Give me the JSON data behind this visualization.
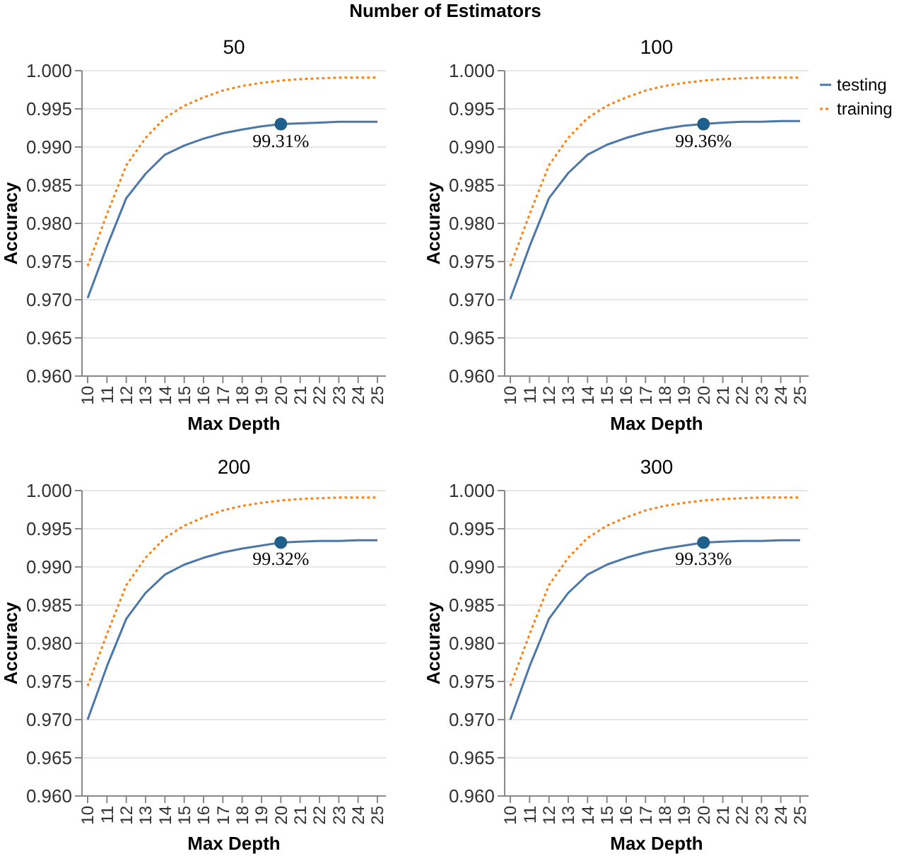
{
  "chart_data": [
    {
      "type": "line",
      "title": "50",
      "xlabel": "Max Depth",
      "ylabel": "Accuracy",
      "annotations": [
        "Number of Estimators",
        {
          "text": "99.31%",
          "x": "20",
          "y": 0.993
        }
      ],
      "categories": [
        "10",
        "11",
        "12",
        "13",
        "14",
        "15",
        "16",
        "17",
        "18",
        "19",
        "20",
        "21",
        "22",
        "23",
        "24",
        "25"
      ],
      "ylim": [
        0.96,
        1.0
      ],
      "yticks": [
        {
          "value": 0.96,
          "label": "0.960"
        },
        {
          "value": 0.965,
          "label": "0.965"
        },
        {
          "value": 0.97,
          "label": "0.970"
        },
        {
          "value": 0.975,
          "label": "0.975"
        },
        {
          "value": 0.98,
          "label": "0.980"
        },
        {
          "value": 0.985,
          "label": "0.985"
        },
        {
          "value": 0.99,
          "label": "0.990"
        },
        {
          "value": 0.995,
          "label": "0.995"
        },
        {
          "value": 1.0,
          "label": "1.000"
        }
      ],
      "grid": "y",
      "legend": false,
      "series": [
        {
          "color": "#4c78a8",
          "line_style": "solid",
          "values": [
            0.9702,
            0.977,
            0.9833,
            0.9865,
            0.989,
            0.9902,
            0.9911,
            0.9918,
            0.9923,
            0.9927,
            0.993,
            0.9931,
            0.9932,
            0.9933,
            0.9933,
            0.9933
          ]
        },
        {
          "color": "#f58518",
          "line_style": "dotted",
          "values": [
            0.9744,
            0.9812,
            0.9876,
            0.9912,
            0.9938,
            0.9954,
            0.9965,
            0.9974,
            0.998,
            0.9984,
            0.9987,
            0.9989,
            0.999,
            0.9991,
            0.9991,
            0.9991
          ]
        },
        {
          "type": "scatter",
          "color": "#1f5f8b",
          "x": [
            "20"
          ],
          "values": [
            0.993
          ]
        }
      ]
    },
    {
      "type": "line",
      "title": "100",
      "xlabel": "Max Depth",
      "ylabel": "Accuracy",
      "annotations": [
        {
          "text": "99.36%",
          "x": "20",
          "y": 0.993
        }
      ],
      "categories": [
        "10",
        "11",
        "12",
        "13",
        "14",
        "15",
        "16",
        "17",
        "18",
        "19",
        "20",
        "21",
        "22",
        "23",
        "24",
        "25"
      ],
      "ylim": [
        0.96,
        1.0
      ],
      "yticks": [
        {
          "value": 0.96,
          "label": "0.960"
        },
        {
          "value": 0.965,
          "label": "0.965"
        },
        {
          "value": 0.97,
          "label": "0.970"
        },
        {
          "value": 0.975,
          "label": "0.975"
        },
        {
          "value": 0.98,
          "label": "0.980"
        },
        {
          "value": 0.985,
          "label": "0.985"
        },
        {
          "value": 0.99,
          "label": "0.990"
        },
        {
          "value": 0.995,
          "label": "0.995"
        },
        {
          "value": 1.0,
          "label": "1.000"
        }
      ],
      "grid": "y",
      "legend": "right",
      "series": [
        {
          "name": "testing",
          "color": "#4c78a8",
          "line_style": "solid",
          "values": [
            0.9701,
            0.977,
            0.9833,
            0.9866,
            0.989,
            0.9903,
            0.9912,
            0.9919,
            0.9924,
            0.9928,
            0.993,
            0.9932,
            0.9933,
            0.9933,
            0.9934,
            0.9934
          ]
        },
        {
          "name": "training",
          "color": "#f58518",
          "line_style": "dotted",
          "values": [
            0.9744,
            0.9812,
            0.9876,
            0.9912,
            0.9938,
            0.9954,
            0.9965,
            0.9974,
            0.998,
            0.9984,
            0.9987,
            0.9989,
            0.999,
            0.9991,
            0.9991,
            0.9991
          ]
        },
        {
          "type": "scatter",
          "color": "#1f5f8b",
          "x": [
            "20"
          ],
          "values": [
            0.993
          ]
        }
      ]
    },
    {
      "type": "line",
      "title": "200",
      "xlabel": "Max Depth",
      "ylabel": "Accuracy",
      "annotations": [
        {
          "text": "99.32%",
          "x": "20",
          "y": 0.9932
        }
      ],
      "categories": [
        "10",
        "11",
        "12",
        "13",
        "14",
        "15",
        "16",
        "17",
        "18",
        "19",
        "20",
        "21",
        "22",
        "23",
        "24",
        "25"
      ],
      "ylim": [
        0.96,
        1.0
      ],
      "yticks": [
        {
          "value": 0.96,
          "label": "0.960"
        },
        {
          "value": 0.965,
          "label": "0.965"
        },
        {
          "value": 0.97,
          "label": "0.970"
        },
        {
          "value": 0.975,
          "label": "0.975"
        },
        {
          "value": 0.98,
          "label": "0.980"
        },
        {
          "value": 0.985,
          "label": "0.985"
        },
        {
          "value": 0.99,
          "label": "0.990"
        },
        {
          "value": 0.995,
          "label": "0.995"
        },
        {
          "value": 1.0,
          "label": "1.000"
        }
      ],
      "grid": "y",
      "legend": false,
      "series": [
        {
          "color": "#4c78a8",
          "line_style": "solid",
          "values": [
            0.97,
            0.977,
            0.9832,
            0.9866,
            0.989,
            0.9903,
            0.9912,
            0.9919,
            0.9924,
            0.9928,
            0.9932,
            0.9933,
            0.9934,
            0.9934,
            0.9935,
            0.9935
          ]
        },
        {
          "color": "#f58518",
          "line_style": "dotted",
          "values": [
            0.9744,
            0.9812,
            0.9876,
            0.9912,
            0.9938,
            0.9954,
            0.9965,
            0.9974,
            0.998,
            0.9984,
            0.9987,
            0.9989,
            0.999,
            0.9991,
            0.9991,
            0.9991
          ]
        },
        {
          "type": "scatter",
          "color": "#1f5f8b",
          "x": [
            "20"
          ],
          "values": [
            0.9932
          ]
        }
      ]
    },
    {
      "type": "line",
      "title": "300",
      "xlabel": "Max Depth",
      "ylabel": "Accuracy",
      "annotations": [
        {
          "text": "99.33%",
          "x": "20",
          "y": 0.9932
        }
      ],
      "categories": [
        "10",
        "11",
        "12",
        "13",
        "14",
        "15",
        "16",
        "17",
        "18",
        "19",
        "20",
        "21",
        "22",
        "23",
        "24",
        "25"
      ],
      "ylim": [
        0.96,
        1.0
      ],
      "yticks": [
        {
          "value": 0.96,
          "label": "0.960"
        },
        {
          "value": 0.965,
          "label": "0.965"
        },
        {
          "value": 0.97,
          "label": "0.970"
        },
        {
          "value": 0.975,
          "label": "0.975"
        },
        {
          "value": 0.98,
          "label": "0.980"
        },
        {
          "value": 0.985,
          "label": "0.985"
        },
        {
          "value": 0.99,
          "label": "0.990"
        },
        {
          "value": 0.995,
          "label": "0.995"
        },
        {
          "value": 1.0,
          "label": "1.000"
        }
      ],
      "grid": "y",
      "legend": false,
      "series": [
        {
          "color": "#4c78a8",
          "line_style": "solid",
          "values": [
            0.97,
            0.977,
            0.9832,
            0.9866,
            0.989,
            0.9903,
            0.9912,
            0.9919,
            0.9924,
            0.9928,
            0.9932,
            0.9933,
            0.9934,
            0.9934,
            0.9935,
            0.9935
          ]
        },
        {
          "color": "#f58518",
          "line_style": "dotted",
          "values": [
            0.9744,
            0.9812,
            0.9876,
            0.9912,
            0.9938,
            0.9954,
            0.9965,
            0.9974,
            0.998,
            0.9984,
            0.9987,
            0.9989,
            0.999,
            0.9991,
            0.9991,
            0.9991
          ]
        },
        {
          "type": "scatter",
          "color": "#1f5f8b",
          "x": [
            "20"
          ],
          "values": [
            0.9932
          ]
        }
      ]
    }
  ]
}
